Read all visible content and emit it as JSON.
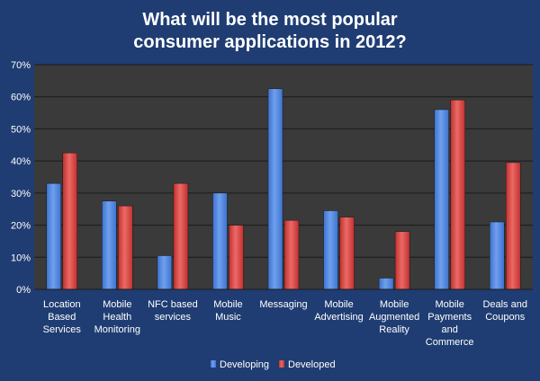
{
  "chart_data": {
    "type": "bar",
    "title_lines": [
      "What will be the most popular",
      "consumer applications in 2012?"
    ],
    "categories": [
      [
        "Location",
        "Based",
        "Services"
      ],
      [
        "Mobile",
        "Health",
        "Monitoring"
      ],
      [
        "NFC based",
        "services"
      ],
      [
        "Mobile",
        "Music"
      ],
      [
        "Messaging"
      ],
      [
        "Mobile",
        "Advertising"
      ],
      [
        "Mobile",
        "Augmented",
        "Reality"
      ],
      [
        "Mobile",
        "Payments",
        "and",
        "Commerce"
      ],
      [
        "Deals and",
        "Coupons"
      ]
    ],
    "series": [
      {
        "name": "Developing",
        "values": [
          33,
          27.5,
          10.5,
          30,
          62.5,
          24.5,
          3.5,
          56,
          21
        ]
      },
      {
        "name": "Developed",
        "values": [
          42.5,
          26,
          33,
          20,
          21.5,
          22.5,
          18,
          59,
          39.5
        ]
      }
    ],
    "ylim": [
      0,
      70
    ],
    "yticks": [
      0,
      10,
      20,
      30,
      40,
      50,
      60,
      70
    ],
    "ytick_labels": [
      "0%",
      "10%",
      "20%",
      "30%",
      "40%",
      "50%",
      "60%",
      "70%"
    ],
    "grid": true,
    "legend_position": "bottom",
    "colors": {
      "background": "#1f3d73",
      "plot_area": "#3a3a3a",
      "gridline": "#1a1a1a",
      "developing": "#3d73cf",
      "developing_light": "#6fa0ee",
      "developed": "#c3302e",
      "developed_light": "#ea6a66"
    }
  }
}
